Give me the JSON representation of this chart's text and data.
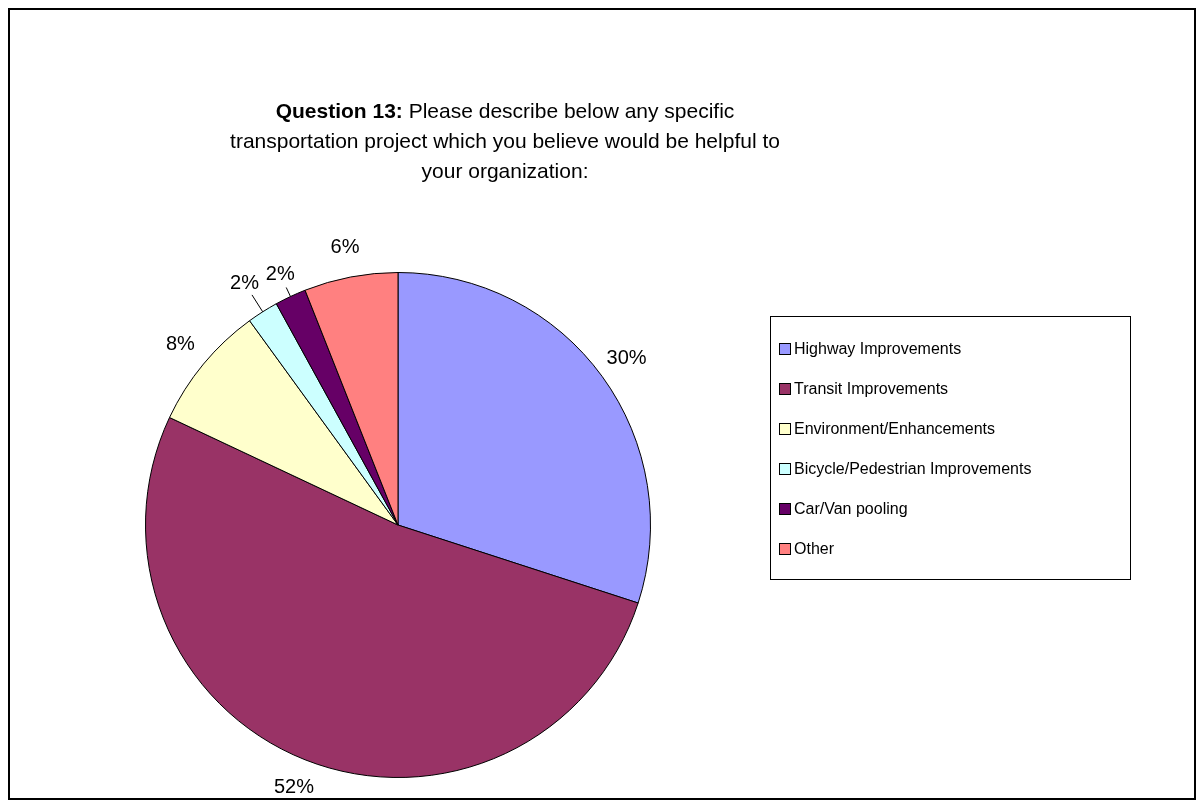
{
  "chart_data": {
    "type": "pie",
    "title": "Question 13:  Please describe below any specific transportation project which you believe would be helpful to your organization:",
    "categories": [
      "Highway Improvements",
      "Transit Improvements",
      "Environment/Enhancements",
      "Bicycle/Pedestrian Improvements",
      "Car/Van pooling",
      "Other"
    ],
    "values": [
      30,
      52,
      8,
      2,
      2,
      6
    ],
    "colors": [
      "#9999ff",
      "#993366",
      "#ffffcc",
      "#ccffff",
      "#660066",
      "#ff8080"
    ],
    "value_labels": [
      "30%",
      "52%",
      "8%",
      "2%",
      "2%",
      "6%"
    ],
    "legend": "right"
  }
}
